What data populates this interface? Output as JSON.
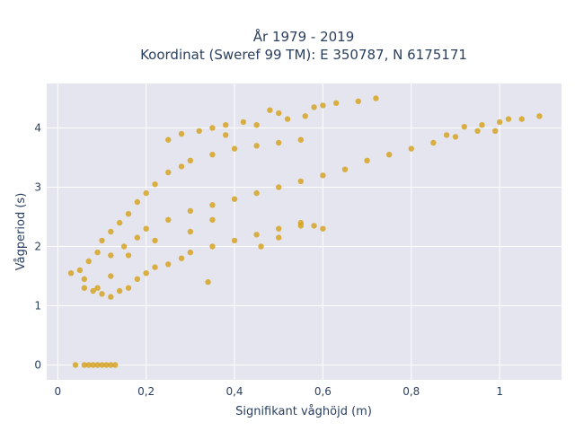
{
  "chart_data": {
    "type": "scatter",
    "title_lines": [
      "År 1979 - 2019",
      "Koordinat (Sweref 99 TM): E 350787, N 6175171"
    ],
    "xlabel": "Signifikant våghöjd (m)",
    "ylabel": "Vågperiod (s)",
    "xlim": [
      -0.025,
      1.14
    ],
    "ylim": [
      -0.25,
      4.75
    ],
    "x_ticks": [
      0,
      0.2,
      0.4,
      0.6,
      0.8,
      1
    ],
    "x_tick_labels": [
      "0",
      "0,2",
      "0,4",
      "0,6",
      "0,8",
      "1"
    ],
    "y_ticks": [
      0,
      1,
      2,
      3,
      4
    ],
    "y_tick_labels": [
      "0",
      "1",
      "2",
      "3",
      "4"
    ],
    "grid": true,
    "legend": "none",
    "marker_color": "#D4A017",
    "plot_background": "#E5E5F0",
    "series": [
      {
        "points": [
          [
            0.04,
            0.0
          ],
          [
            0.06,
            0.0
          ],
          [
            0.07,
            0.0
          ],
          [
            0.08,
            0.0
          ],
          [
            0.09,
            0.0
          ],
          [
            0.1,
            0.0
          ],
          [
            0.11,
            0.0
          ],
          [
            0.12,
            0.0
          ],
          [
            0.13,
            0.0
          ],
          [
            0.03,
            1.55
          ],
          [
            0.05,
            1.6
          ],
          [
            0.06,
            1.45
          ],
          [
            0.07,
            1.75
          ],
          [
            0.09,
            1.9
          ],
          [
            0.1,
            2.1
          ],
          [
            0.12,
            2.25
          ],
          [
            0.14,
            2.4
          ],
          [
            0.16,
            2.55
          ],
          [
            0.18,
            2.75
          ],
          [
            0.2,
            2.9
          ],
          [
            0.22,
            3.05
          ],
          [
            0.25,
            3.25
          ],
          [
            0.28,
            3.35
          ],
          [
            0.3,
            3.45
          ],
          [
            0.35,
            3.55
          ],
          [
            0.4,
            3.65
          ],
          [
            0.45,
            3.7
          ],
          [
            0.5,
            3.75
          ],
          [
            0.55,
            3.8
          ],
          [
            0.12,
            1.85
          ],
          [
            0.15,
            2.0
          ],
          [
            0.18,
            2.15
          ],
          [
            0.2,
            2.3
          ],
          [
            0.25,
            2.45
          ],
          [
            0.3,
            2.6
          ],
          [
            0.35,
            2.7
          ],
          [
            0.4,
            2.8
          ],
          [
            0.45,
            2.9
          ],
          [
            0.5,
            3.0
          ],
          [
            0.55,
            3.1
          ],
          [
            0.6,
            3.2
          ],
          [
            0.65,
            3.3
          ],
          [
            0.7,
            3.45
          ],
          [
            0.75,
            3.55
          ],
          [
            0.8,
            3.65
          ],
          [
            0.85,
            3.75
          ],
          [
            0.9,
            3.85
          ],
          [
            0.95,
            3.95
          ],
          [
            1.0,
            4.1
          ],
          [
            1.02,
            4.15
          ],
          [
            0.09,
            1.3
          ],
          [
            0.1,
            1.2
          ],
          [
            0.12,
            1.15
          ],
          [
            0.14,
            1.25
          ],
          [
            0.16,
            1.3
          ],
          [
            0.18,
            1.45
          ],
          [
            0.2,
            1.55
          ],
          [
            0.22,
            1.65
          ],
          [
            0.25,
            1.7
          ],
          [
            0.28,
            1.8
          ],
          [
            0.3,
            1.9
          ],
          [
            0.35,
            2.0
          ],
          [
            0.4,
            2.1
          ],
          [
            0.45,
            2.2
          ],
          [
            0.5,
            2.3
          ],
          [
            0.55,
            2.4
          ],
          [
            0.58,
            2.35
          ],
          [
            0.06,
            1.3
          ],
          [
            0.08,
            1.25
          ],
          [
            0.12,
            1.5
          ],
          [
            0.16,
            1.85
          ],
          [
            0.22,
            2.1
          ],
          [
            0.3,
            2.25
          ],
          [
            0.34,
            1.4
          ],
          [
            0.35,
            4.0
          ],
          [
            0.38,
            4.05
          ],
          [
            0.42,
            4.1
          ],
          [
            0.45,
            4.05
          ],
          [
            0.48,
            4.3
          ],
          [
            0.5,
            4.25
          ],
          [
            0.52,
            4.15
          ],
          [
            0.56,
            4.2
          ],
          [
            0.58,
            4.35
          ],
          [
            0.6,
            4.38
          ],
          [
            0.63,
            4.42
          ],
          [
            0.68,
            4.45
          ],
          [
            0.72,
            4.5
          ],
          [
            0.25,
            3.8
          ],
          [
            0.28,
            3.9
          ],
          [
            0.32,
            3.95
          ],
          [
            0.38,
            3.88
          ],
          [
            0.88,
            3.88
          ],
          [
            0.92,
            4.02
          ],
          [
            0.96,
            4.05
          ],
          [
            0.99,
            3.95
          ],
          [
            1.05,
            4.15
          ],
          [
            1.09,
            4.2
          ],
          [
            0.5,
            2.15
          ],
          [
            0.55,
            2.35
          ],
          [
            0.6,
            2.3
          ],
          [
            0.35,
            2.45
          ],
          [
            0.46,
            2.0
          ]
        ]
      }
    ]
  }
}
